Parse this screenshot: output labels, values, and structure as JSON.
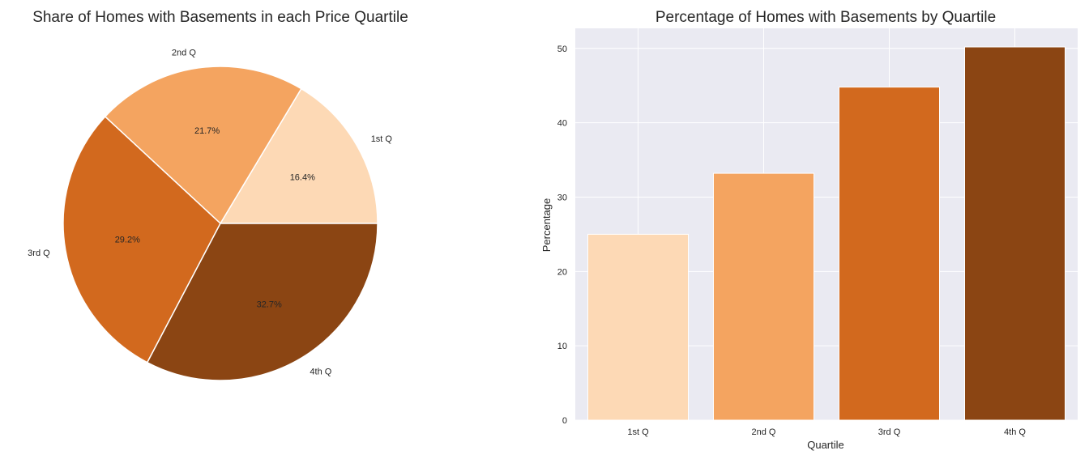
{
  "chart_data": [
    {
      "type": "pie",
      "title": "Share of Homes with Basements in each Price Quartile",
      "categories": [
        "1st Q",
        "2nd Q",
        "3rd Q",
        "4th Q"
      ],
      "values": [
        16.4,
        21.7,
        29.2,
        32.7
      ],
      "value_labels": [
        "16.4%",
        "21.7%",
        "29.2%",
        "32.7%"
      ],
      "colors": [
        "#FDD9B5",
        "#F4A460",
        "#D2691E",
        "#8B4513"
      ],
      "start_angle": 0,
      "direction": "counterclockwise"
    },
    {
      "type": "bar",
      "title": "Percentage of Homes with Basements by Quartile",
      "categories": [
        "1st Q",
        "2nd Q",
        "3rd Q",
        "4th Q"
      ],
      "values": [
        25,
        33.2,
        44.8,
        50.2
      ],
      "colors": [
        "#FDD9B5",
        "#F4A460",
        "#D2691E",
        "#8B4513"
      ],
      "xlabel": "Quartile",
      "ylabel": "Percentage",
      "ylim": [
        0,
        52.7
      ],
      "yticks": [
        0,
        10,
        20,
        30,
        40,
        50
      ],
      "grid": true,
      "background": "#EAEAF2"
    }
  ]
}
